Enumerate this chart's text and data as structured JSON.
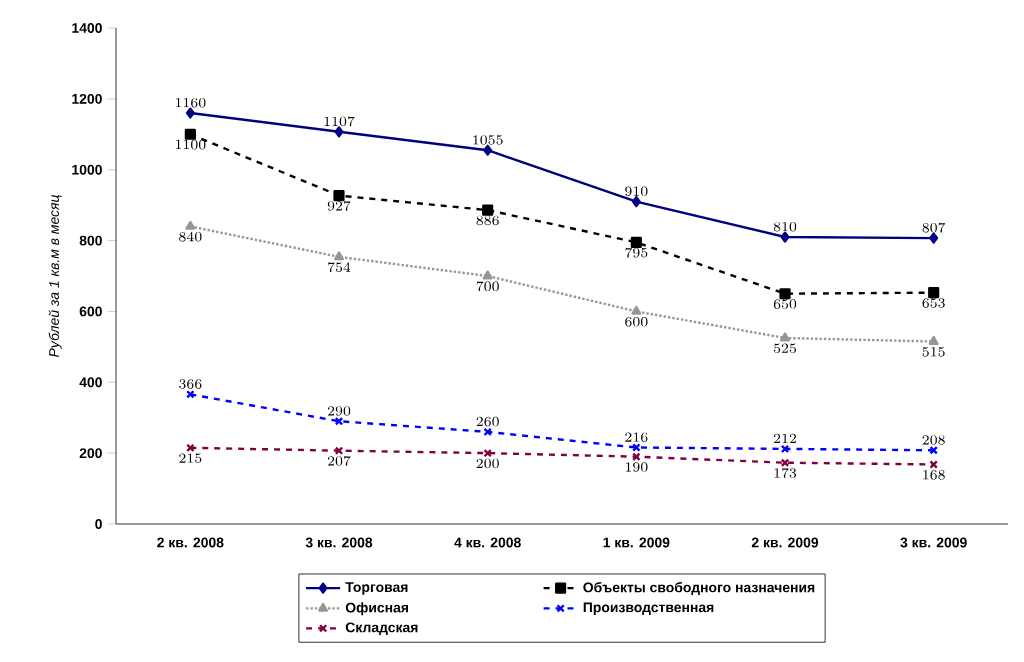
{
  "chart_data": {
    "type": "line",
    "ylabel": "Рублей за 1 кв.м в месяц",
    "categories": [
      "2 кв. 2008",
      "3 кв. 2008",
      "4 кв. 2008",
      "1 кв. 2009",
      "2 кв. 2009",
      "3 кв. 2009"
    ],
    "series": [
      {
        "name": "Торговая",
        "color": "#000080",
        "marker": "diamond",
        "line_style": "solid",
        "values": [
          1160,
          1107,
          1055,
          910,
          810,
          807
        ]
      },
      {
        "name": "Объекты свободного назначения",
        "color": "#000000",
        "marker": "square",
        "line_style": "dashed",
        "values": [
          1100,
          927,
          886,
          795,
          650,
          653
        ]
      },
      {
        "name": "Офисная",
        "color": "#969696",
        "marker": "triangle",
        "line_style": "dotted",
        "values": [
          840,
          754,
          700,
          600,
          525,
          515
        ]
      },
      {
        "name": "Производственная",
        "color": "#0000ff",
        "marker": "cross",
        "line_style": "dashed",
        "values": [
          366,
          290,
          260,
          216,
          212,
          208
        ]
      },
      {
        "name": "Складская",
        "color": "#800040",
        "marker": "cross",
        "line_style": "dashed",
        "values": [
          215,
          207,
          200,
          190,
          173,
          168
        ]
      }
    ],
    "ylim": [
      0,
      1400
    ],
    "yticks": [
      0,
      200,
      400,
      600,
      800,
      1000,
      1200,
      1400
    ],
    "data_labels": true,
    "legend": "bottom",
    "grid": false
  }
}
